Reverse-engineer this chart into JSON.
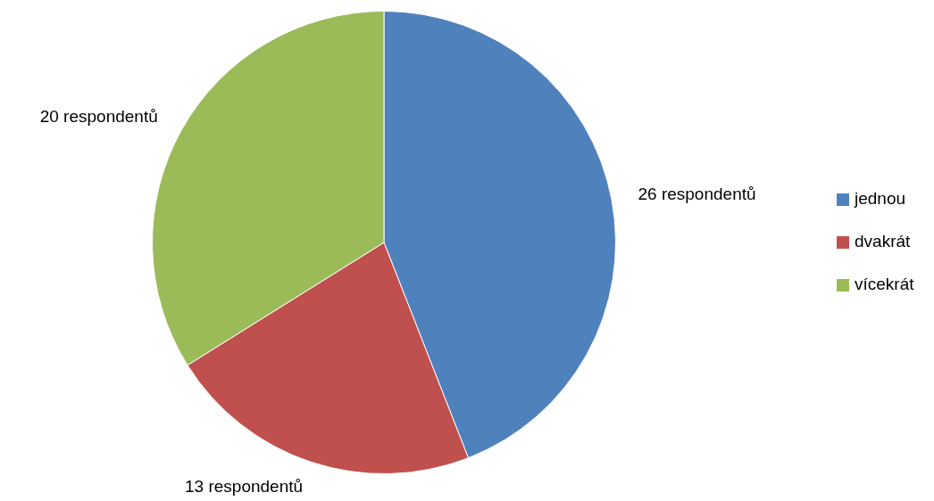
{
  "chart_data": {
    "type": "pie",
    "categories": [
      "jednou",
      "dvakrát",
      "vícekrát"
    ],
    "values": [
      26,
      13,
      20
    ],
    "colors": [
      "#4f81bd",
      "#c0504d",
      "#9bbb59"
    ],
    "value_labels": [
      "26 respondentů",
      "13 respondentů",
      "20 respondentů"
    ],
    "legend": "right"
  }
}
